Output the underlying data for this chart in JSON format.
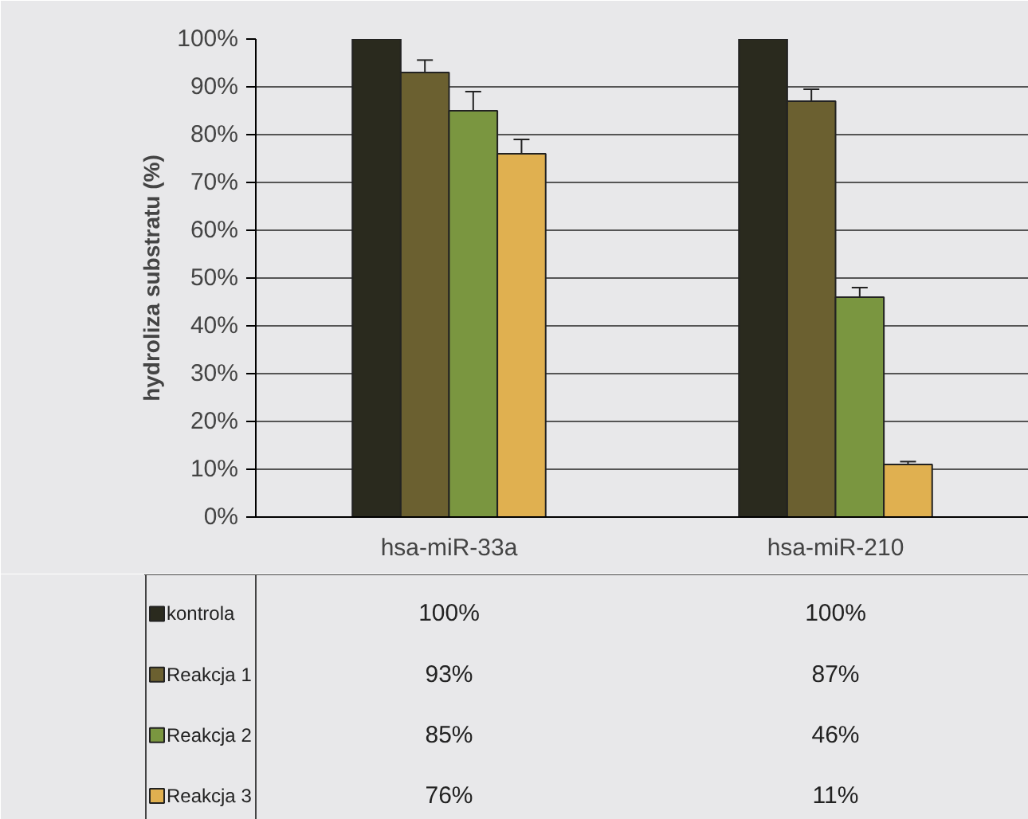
{
  "chart_data": {
    "type": "bar",
    "ylabel": "hydroliza substratu (%)",
    "categories": [
      "hsa-miR-33a",
      "hsa-miR-210"
    ],
    "series": [
      {
        "name": "kontrola",
        "color": "#2a2a1e",
        "values": [
          100,
          100
        ],
        "value_labels": [
          "100%",
          "100%"
        ]
      },
      {
        "name": "Reakcja 1",
        "color": "#6b6030",
        "values": [
          93,
          87
        ],
        "errors": [
          2.6,
          2.5
        ],
        "value_labels": [
          "93%",
          "87%"
        ]
      },
      {
        "name": "Reakcja 2",
        "color": "#7a9640",
        "values": [
          85,
          46
        ],
        "errors": [
          4,
          2
        ],
        "value_labels": [
          "85%",
          "46%"
        ]
      },
      {
        "name": "Reakcja 3",
        "color": "#e0b050",
        "values": [
          76,
          11
        ],
        "errors": [
          3,
          0.6
        ],
        "value_labels": [
          "76%",
          "11%"
        ]
      }
    ],
    "ylim": [
      0,
      100
    ],
    "yticks": [
      {
        "value": 0,
        "label": "0%"
      },
      {
        "value": 10,
        "label": "10%"
      },
      {
        "value": 20,
        "label": "20%"
      },
      {
        "value": 30,
        "label": "30%"
      },
      {
        "value": 40,
        "label": "40%"
      },
      {
        "value": 50,
        "label": "50%"
      },
      {
        "value": 60,
        "label": "60%"
      },
      {
        "value": 70,
        "label": "70%"
      },
      {
        "value": 80,
        "label": "80%"
      },
      {
        "value": 90,
        "label": "90%"
      },
      {
        "value": 100,
        "label": "100%"
      }
    ],
    "grid": "y",
    "legend": "bottom"
  }
}
